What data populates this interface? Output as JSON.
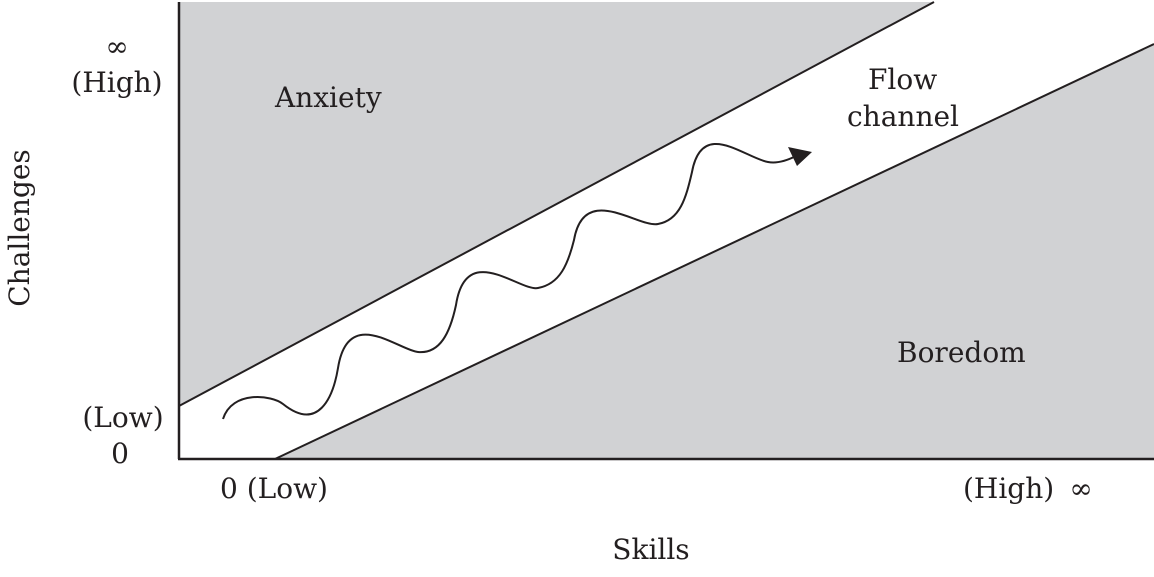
{
  "regions": {
    "anxiety": "Anxiety",
    "flow_line1": "Flow",
    "flow_line2": "channel",
    "boredom": "Boredom"
  },
  "y_axis": {
    "label": "Challenges",
    "top_symbol": "∞",
    "top_text": "(High)",
    "bottom_text": "(Low)",
    "bottom_symbol": "0"
  },
  "x_axis": {
    "label": "Skills",
    "left_text": "0 (Low)",
    "right_text": "(High)",
    "right_symbol": "∞"
  },
  "colors": {
    "region_fill": "#d1d2d4",
    "line": "#231f20",
    "background": "#ffffff"
  }
}
